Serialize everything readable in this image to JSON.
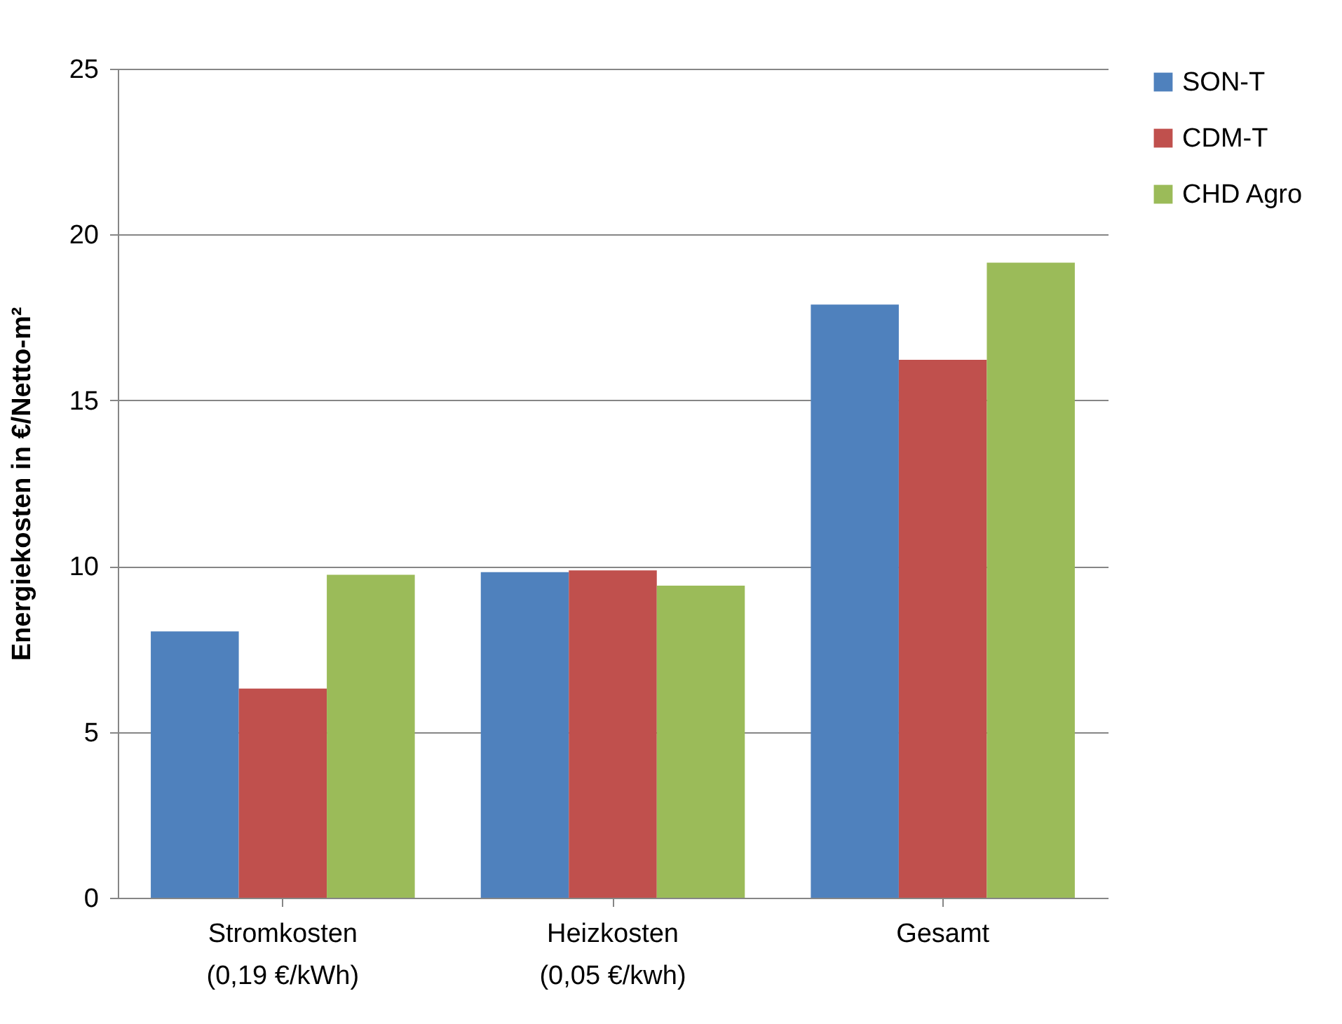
{
  "chart_data": {
    "type": "bar",
    "ylabel": "Energiekosten in €/Netto-m²",
    "categories": [
      "Stromkosten\n(0,19 €/kWh)",
      "Heizkosten\n(0,05 €/kwh)",
      "Gesamt"
    ],
    "series": [
      {
        "name": "SON-T",
        "color": "#4f81bd",
        "values": [
          8.03,
          9.82,
          17.89
        ]
      },
      {
        "name": "CDM-T",
        "color": "#c0504d",
        "values": [
          6.31,
          9.87,
          16.22
        ]
      },
      {
        "name": "CHD Agro",
        "color": "#9bbb59",
        "values": [
          9.74,
          9.41,
          19.15
        ]
      }
    ],
    "ylim": [
      0,
      25
    ],
    "yticks": [
      0,
      5,
      10,
      15,
      20,
      25
    ],
    "grid": "y",
    "legend": "right"
  }
}
